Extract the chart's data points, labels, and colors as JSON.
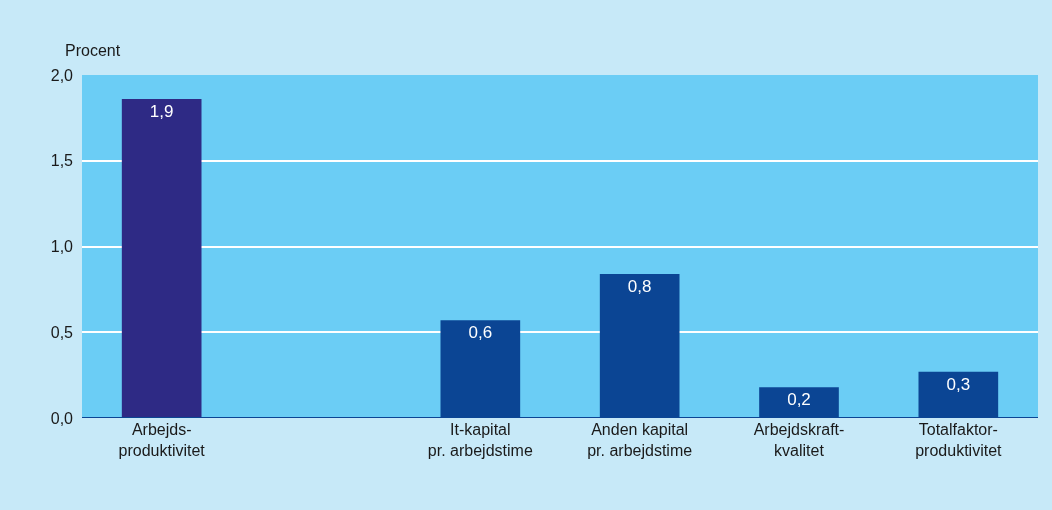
{
  "chart_data": {
    "type": "bar",
    "ylabel": "Procent",
    "categories": [
      "Arbejds-\nproduktivitet",
      null,
      "It-kapital\npr. arbejdstime",
      "Anden kapital\npr. arbejdstime",
      "Arbejdskraft-\nkvalitet",
      "Totalfaktor-\nproduktivitet"
    ],
    "values": [
      1.86,
      null,
      0.57,
      0.84,
      0.18,
      0.27
    ],
    "value_labels": [
      "1,9",
      null,
      "0,6",
      "0,8",
      "0,2",
      "0,3"
    ],
    "colors": [
      "#2e2a85",
      "#0b4594",
      "#0b4594",
      "#0b4594",
      "#0b4594",
      "#0b4594"
    ],
    "ylim": [
      0,
      2.0
    ],
    "yticks": [
      {
        "value": 0,
        "label": "0,0"
      },
      {
        "value": 0.5,
        "label": "0,5"
      },
      {
        "value": 1.0,
        "label": "1,0"
      },
      {
        "value": 1.5,
        "label": "1,5"
      },
      {
        "value": 2.0,
        "label": "2,0"
      }
    ],
    "grid": "y",
    "legend": false
  }
}
